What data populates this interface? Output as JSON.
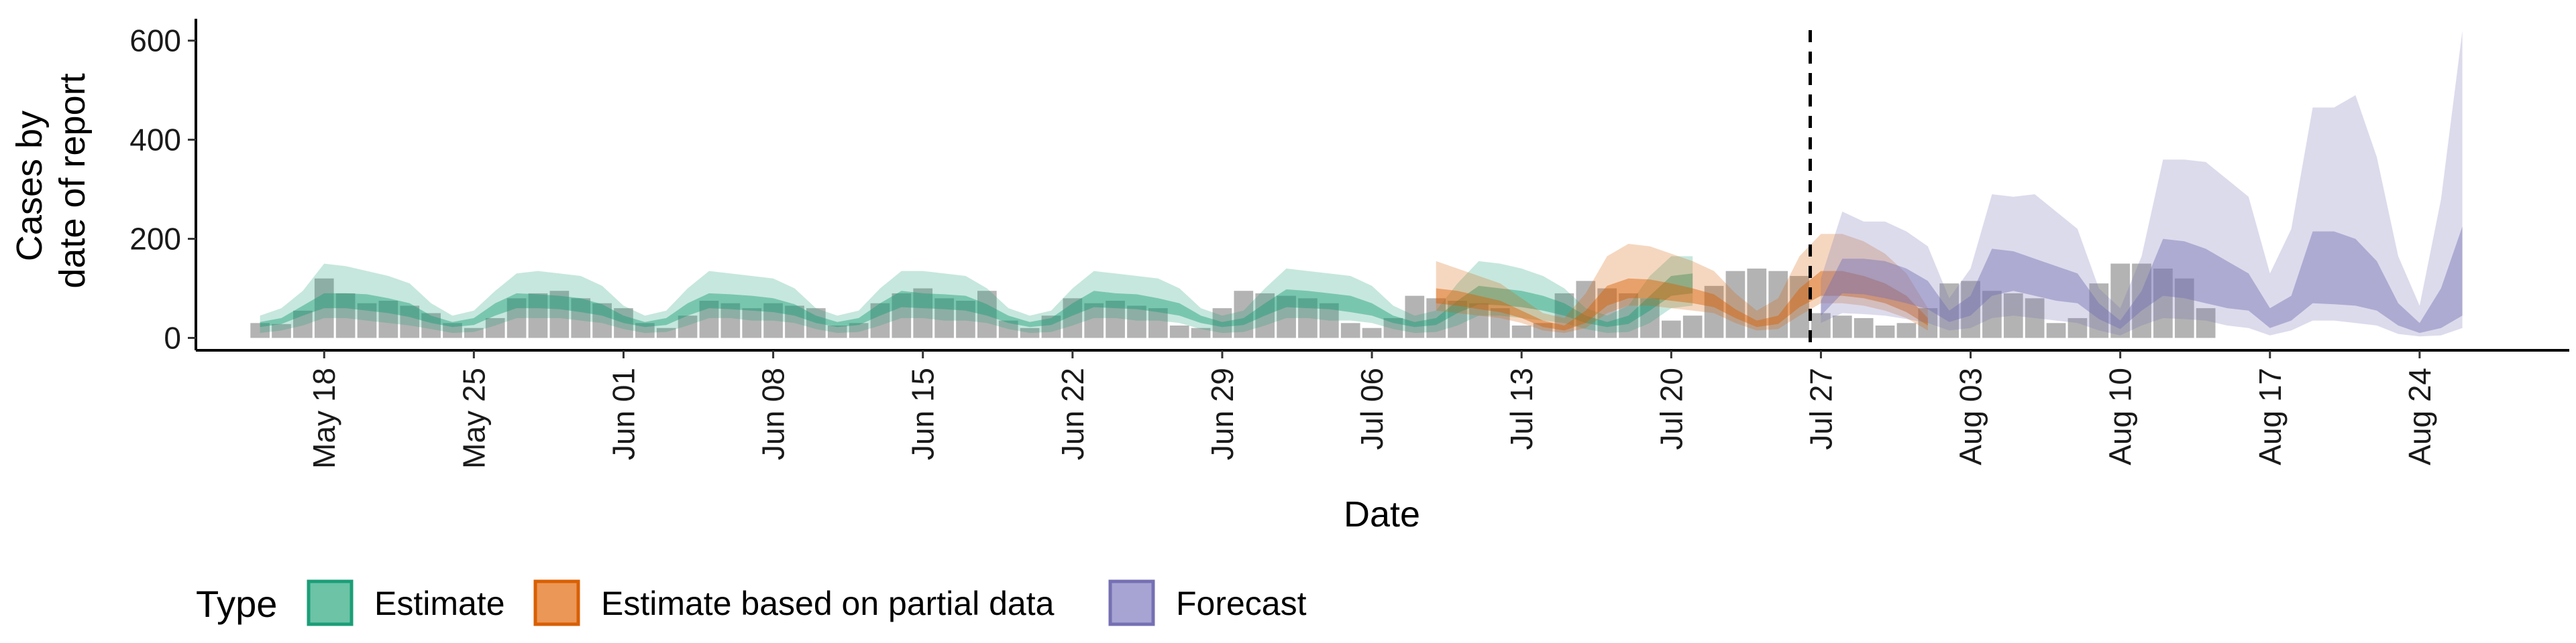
{
  "chart_data": {
    "type": "area",
    "xlabel": "Date",
    "ylabel_lines": [
      "Cases by",
      "date of report"
    ],
    "y_ticks": [
      0,
      200,
      400,
      600
    ],
    "ylim": [
      -25,
      655
    ],
    "x_range": [
      "2020-05-12",
      "2020-08-31"
    ],
    "x_ticks": [
      "May 18",
      "May 25",
      "Jun 01",
      "Jun 08",
      "Jun 15",
      "Jun 22",
      "Jun 29",
      "Jul 06",
      "Jul 13",
      "Jul 20",
      "Jul 27",
      "Aug 03",
      "Aug 10",
      "Aug 17",
      "Aug 24"
    ],
    "x_tick_dates": [
      "2020-05-18",
      "2020-05-25",
      "2020-06-01",
      "2020-06-08",
      "2020-06-15",
      "2020-06-22",
      "2020-06-29",
      "2020-07-06",
      "2020-07-13",
      "2020-07-20",
      "2020-07-27",
      "2020-08-03",
      "2020-08-10",
      "2020-08-17",
      "2020-08-24"
    ],
    "forecast_date": "2020-07-26",
    "grid": false,
    "legend_position": "bottom",
    "legend_title": "Type",
    "legend": [
      {
        "label": "Estimate",
        "fill": "#6cc3a6",
        "stroke": "#1b9e77"
      },
      {
        "label": "Estimate based on partial data",
        "fill": "#eb9757",
        "stroke": "#d95f02"
      },
      {
        "label": "Forecast",
        "fill": "#a7a3d3",
        "stroke": "#7570b3"
      }
    ],
    "colors": {
      "bars": "#a6a6a6",
      "estimate": "#1b9e77",
      "partial": "#d95f02",
      "forecast": "#7570b3",
      "cutoff_line": "#000000"
    },
    "observed_start": "2020-05-15",
    "observed_cases": [
      30,
      28,
      55,
      120,
      90,
      70,
      75,
      65,
      50,
      30,
      20,
      40,
      80,
      90,
      95,
      80,
      70,
      60,
      30,
      20,
      45,
      75,
      70,
      60,
      70,
      65,
      60,
      25,
      30,
      70,
      90,
      100,
      80,
      75,
      95,
      35,
      20,
      45,
      80,
      70,
      75,
      65,
      60,
      25,
      20,
      60,
      95,
      90,
      85,
      80,
      70,
      30,
      20,
      40,
      85,
      80,
      75,
      70,
      60,
      25,
      30,
      90,
      115,
      100,
      90,
      80,
      35,
      45,
      105,
      135,
      140,
      135,
      125,
      50,
      45,
      40,
      25,
      30,
      60,
      110,
      115,
      95,
      90,
      80,
      30,
      40,
      110,
      150,
      150,
      140,
      120,
      60
    ],
    "ribbons": [
      {
        "series": "Estimate",
        "start": "2020-05-15",
        "outer_lower": [
          10,
          15,
          25,
          40,
          40,
          35,
          30,
          25,
          18,
          10,
          12,
          25,
          40,
          40,
          40,
          35,
          30,
          18,
          10,
          12,
          25,
          40,
          40,
          35,
          35,
          30,
          18,
          10,
          12,
          25,
          40,
          40,
          35,
          35,
          30,
          18,
          10,
          12,
          25,
          40,
          40,
          35,
          35,
          30,
          18,
          10,
          12,
          25,
          40,
          40,
          35,
          35,
          30,
          18,
          10,
          12,
          25,
          45,
          45,
          40,
          35,
          30,
          18,
          10,
          12,
          30,
          60,
          65
        ],
        "inner_lower": [
          22,
          28,
          45,
          60,
          60,
          55,
          50,
          42,
          30,
          22,
          26,
          45,
          60,
          60,
          58,
          52,
          45,
          30,
          22,
          26,
          45,
          60,
          58,
          55,
          52,
          45,
          30,
          22,
          26,
          45,
          62,
          60,
          58,
          55,
          45,
          30,
          22,
          26,
          45,
          62,
          60,
          58,
          52,
          45,
          30,
          22,
          26,
          45,
          62,
          60,
          58,
          52,
          45,
          30,
          22,
          26,
          50,
          68,
          66,
          62,
          55,
          45,
          30,
          22,
          28,
          55,
          85,
          90
        ],
        "inner_upper": [
          32,
          40,
          65,
          90,
          90,
          88,
          80,
          70,
          45,
          32,
          40,
          70,
          90,
          88,
          85,
          80,
          68,
          45,
          32,
          40,
          70,
          90,
          88,
          85,
          80,
          68,
          45,
          32,
          40,
          70,
          95,
          90,
          88,
          85,
          68,
          45,
          32,
          40,
          70,
          95,
          90,
          88,
          80,
          70,
          45,
          32,
          40,
          70,
          98,
          95,
          90,
          85,
          70,
          45,
          32,
          40,
          75,
          105,
          100,
          95,
          85,
          70,
          45,
          32,
          45,
          85,
          125,
          130
        ],
        "outer_upper": [
          45,
          60,
          95,
          150,
          145,
          135,
          125,
          110,
          70,
          45,
          55,
          95,
          130,
          135,
          130,
          125,
          105,
          65,
          45,
          55,
          100,
          135,
          130,
          125,
          120,
          100,
          60,
          45,
          55,
          100,
          135,
          135,
          130,
          125,
          100,
          60,
          45,
          55,
          100,
          135,
          130,
          125,
          120,
          100,
          60,
          45,
          55,
          100,
          140,
          135,
          130,
          125,
          105,
          65,
          45,
          55,
          110,
          155,
          150,
          140,
          125,
          100,
          60,
          45,
          65,
          125,
          165,
          165
        ]
      },
      {
        "series": "Estimate based on partial data",
        "start": "2020-07-09",
        "outer_lower": [
          55,
          50,
          45,
          40,
          30,
          15,
          10,
          20,
          50,
          65,
          65,
          60,
          55,
          50,
          30,
          15,
          18,
          45,
          70,
          70,
          65,
          55,
          40,
          15
        ],
        "inner_lower": [
          70,
          65,
          58,
          52,
          40,
          22,
          15,
          30,
          65,
          80,
          80,
          75,
          70,
          62,
          40,
          22,
          28,
          62,
          85,
          85,
          80,
          70,
          52,
          25
        ],
        "inner_upper": [
          100,
          95,
          85,
          75,
          55,
          35,
          25,
          55,
          105,
          120,
          118,
          110,
          100,
          88,
          58,
          35,
          45,
          100,
          135,
          135,
          125,
          110,
          85,
          40
        ],
        "outer_upper": [
          155,
          140,
          125,
          110,
          80,
          50,
          40,
          90,
          165,
          190,
          185,
          170,
          155,
          135,
          90,
          55,
          80,
          165,
          210,
          210,
          195,
          170,
          130,
          60
        ]
      },
      {
        "series": "Forecast",
        "start": "2020-07-27",
        "outer_lower": [
          30,
          50,
          48,
          45,
          38,
          30,
          15,
          20,
          40,
          45,
          40,
          35,
          30,
          15,
          5,
          25,
          40,
          38,
          35,
          25,
          20,
          5,
          15,
          35,
          35,
          30,
          25,
          8,
          3,
          5,
          20
        ],
        "inner_lower": [
          45,
          90,
          88,
          80,
          70,
          58,
          32,
          45,
          85,
          95,
          85,
          75,
          70,
          38,
          18,
          55,
          85,
          80,
          70,
          60,
          55,
          20,
          35,
          70,
          68,
          65,
          55,
          25,
          10,
          20,
          45
        ],
        "inner_upper": [
          75,
          160,
          160,
          155,
          140,
          115,
          55,
          85,
          180,
          175,
          160,
          145,
          130,
          70,
          35,
          95,
          200,
          195,
          180,
          155,
          130,
          60,
          85,
          215,
          215,
          200,
          155,
          70,
          30,
          100,
          225
        ],
        "outer_upper": [
          120,
          255,
          235,
          235,
          215,
          185,
          80,
          140,
          290,
          285,
          290,
          255,
          220,
          100,
          60,
          165,
          360,
          360,
          355,
          320,
          285,
          130,
          220,
          465,
          465,
          490,
          365,
          165,
          65,
          280,
          620
        ]
      }
    ]
  }
}
